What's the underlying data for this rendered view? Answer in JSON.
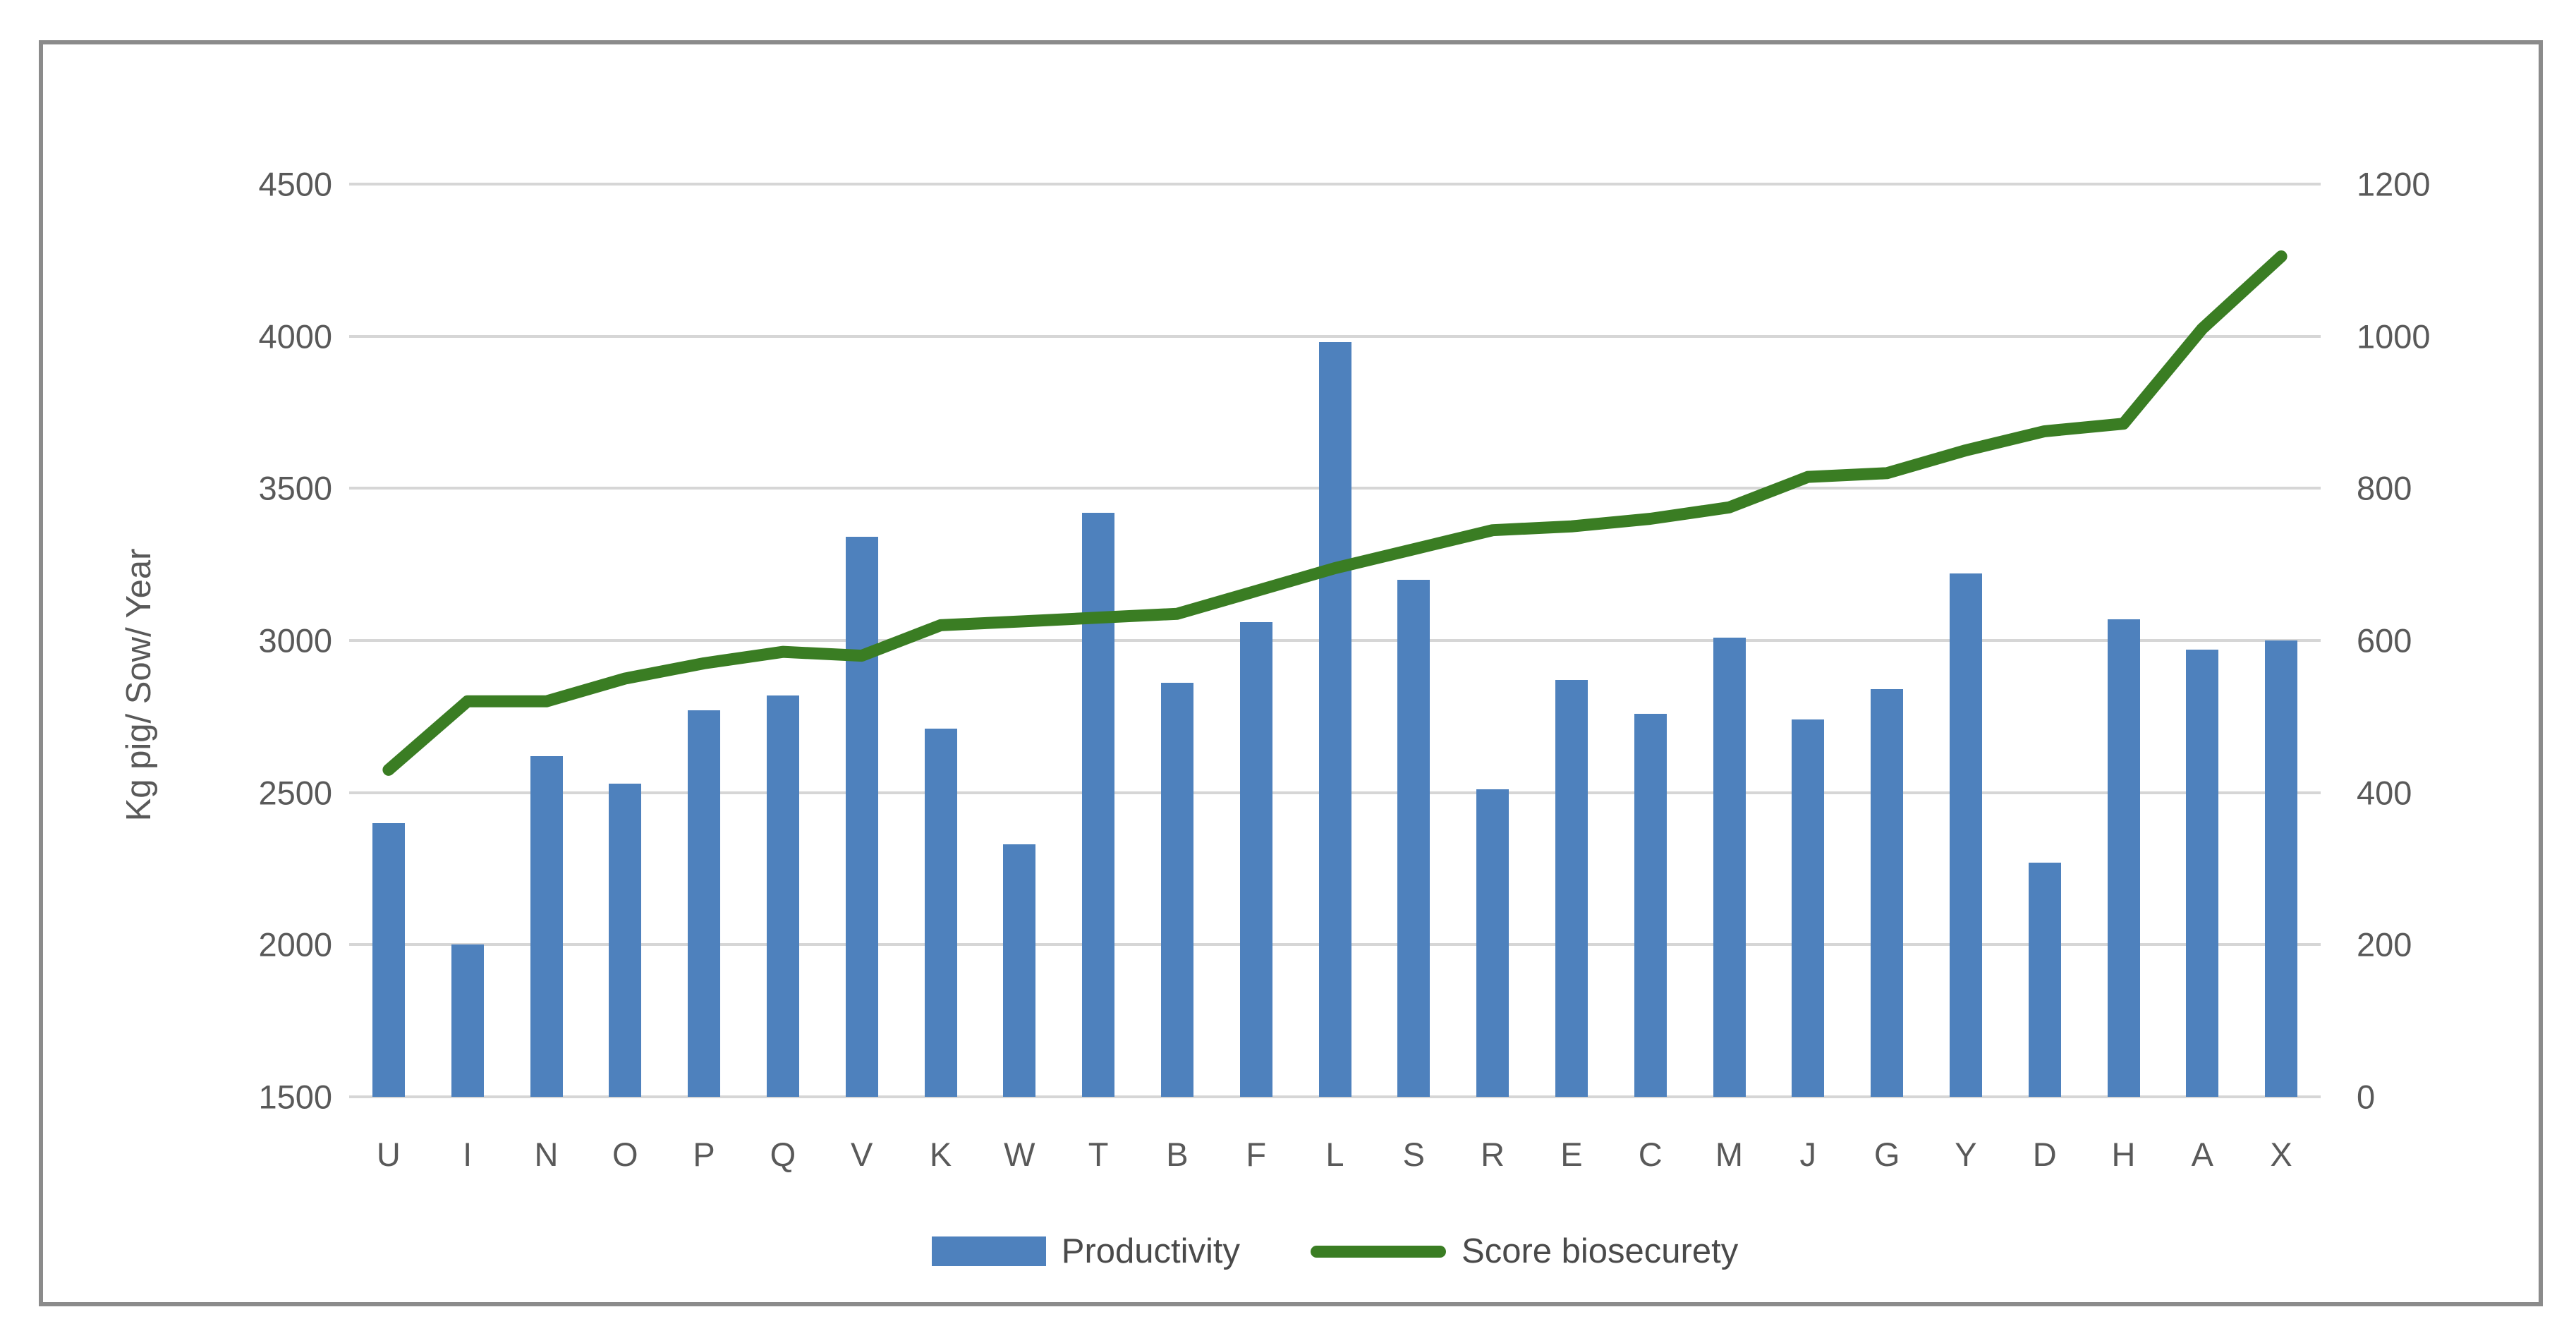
{
  "chart_data": {
    "type": "bar",
    "subtype": "combo-bar-line",
    "categories": [
      "U",
      "I",
      "N",
      "O",
      "P",
      "Q",
      "V",
      "K",
      "W",
      "T",
      "B",
      "F",
      "L",
      "S",
      "R",
      "E",
      "C",
      "M",
      "J",
      "G",
      "Y",
      "D",
      "H",
      "A",
      "X"
    ],
    "series": [
      {
        "name": "Productivity",
        "type": "bar",
        "axis": "left",
        "color": "#4e81bd",
        "values": [
          2400,
          2000,
          2620,
          2530,
          2770,
          2820,
          3340,
          2710,
          2330,
          3420,
          2860,
          3060,
          3980,
          3200,
          2510,
          2870,
          2760,
          3010,
          2740,
          2840,
          3220,
          2270,
          3070,
          2970,
          3000
        ]
      },
      {
        "name": "Score biosecurety",
        "type": "line",
        "axis": "right",
        "color": "#3a7d23",
        "values": [
          430,
          520,
          520,
          550,
          570,
          585,
          580,
          620,
          625,
          630,
          635,
          665,
          695,
          720,
          745,
          750,
          760,
          775,
          815,
          820,
          850,
          875,
          885,
          1010,
          1105
        ]
      }
    ],
    "left_axis": {
      "title": "Kg pig/ Sow/ Year",
      "min": 1500,
      "max": 4500,
      "step": 500,
      "tick_labels": [
        "4500",
        "4000",
        "3500",
        "3000",
        "2500",
        "2000",
        "1500"
      ]
    },
    "right_axis": {
      "title": "",
      "min": 0,
      "max": 1200,
      "step": 200,
      "tick_labels": [
        "1200",
        "1000",
        "800",
        "600",
        "400",
        "200",
        "0"
      ]
    },
    "grid": true,
    "legend_position": "bottom",
    "colors": {
      "grid": "#d6d6d6",
      "text": "#595959",
      "frame_border": "#8b8b8b",
      "background": "#ffffff"
    }
  },
  "legend": {
    "productivity_label": "Productivity",
    "biosecurity_label": "Score biosecurety"
  }
}
